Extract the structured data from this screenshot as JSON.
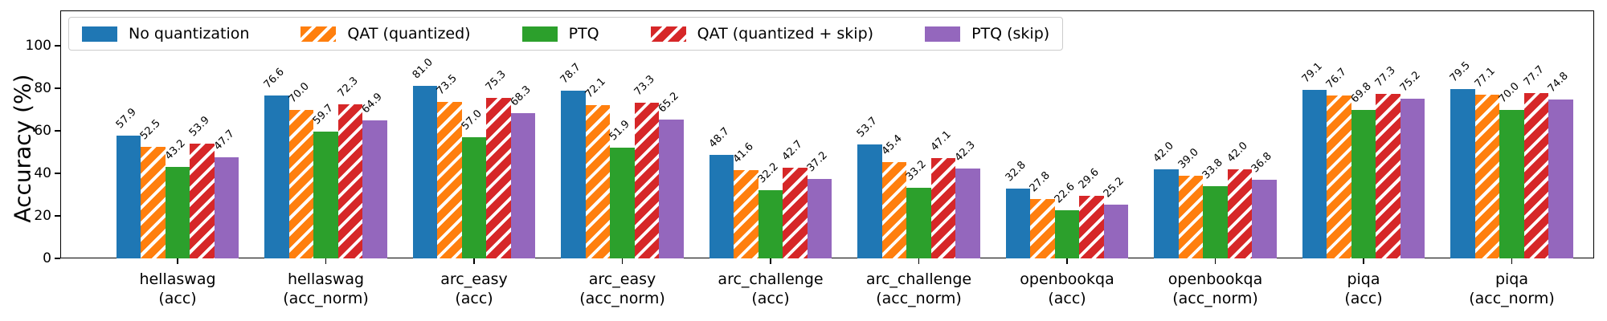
{
  "chart_data": {
    "type": "bar",
    "title": "",
    "xlabel": "",
    "ylabel": "Accuracy (%)",
    "ylim": [
      0,
      116
    ],
    "yticks": [
      0,
      20,
      40,
      60,
      80,
      100
    ],
    "grid": false,
    "legend_position": "top-left-inside",
    "value_label_decimals": 1,
    "categories": [
      [
        "hellaswag",
        "(acc)"
      ],
      [
        "hellaswag",
        "(acc_norm)"
      ],
      [
        "arc_easy",
        "(acc)"
      ],
      [
        "arc_easy",
        "(acc_norm)"
      ],
      [
        "arc_challenge",
        "(acc)"
      ],
      [
        "arc_challenge",
        "(acc_norm)"
      ],
      [
        "openbookqa",
        "(acc)"
      ],
      [
        "openbookqa",
        "(acc_norm)"
      ],
      [
        "piqa",
        "(acc)"
      ],
      [
        "piqa",
        "(acc_norm)"
      ]
    ],
    "series": [
      {
        "name": "No quantization",
        "color": "#1f77b4",
        "hatch": false,
        "values": [
          57.9,
          76.6,
          81.0,
          78.7,
          48.7,
          53.7,
          32.8,
          42.0,
          79.1,
          79.5
        ]
      },
      {
        "name": "QAT (quantized)",
        "color": "#ff7f0e",
        "hatch": true,
        "values": [
          52.5,
          70.0,
          73.5,
          72.1,
          41.6,
          45.4,
          27.8,
          39.0,
          76.7,
          77.1
        ]
      },
      {
        "name": "PTQ",
        "color": "#2ca02c",
        "hatch": false,
        "values": [
          43.2,
          59.7,
          57.0,
          51.9,
          32.2,
          33.2,
          22.6,
          33.8,
          69.8,
          70.0
        ]
      },
      {
        "name": "QAT (quantized + skip)",
        "color": "#d62728",
        "hatch": true,
        "values": [
          53.9,
          72.3,
          75.3,
          73.3,
          42.7,
          47.1,
          29.6,
          42.0,
          77.3,
          77.7
        ]
      },
      {
        "name": "PTQ (skip)",
        "color": "#9467bd",
        "hatch": false,
        "values": [
          47.7,
          64.9,
          68.3,
          65.2,
          37.2,
          42.3,
          25.2,
          36.8,
          75.2,
          74.8
        ]
      }
    ]
  }
}
